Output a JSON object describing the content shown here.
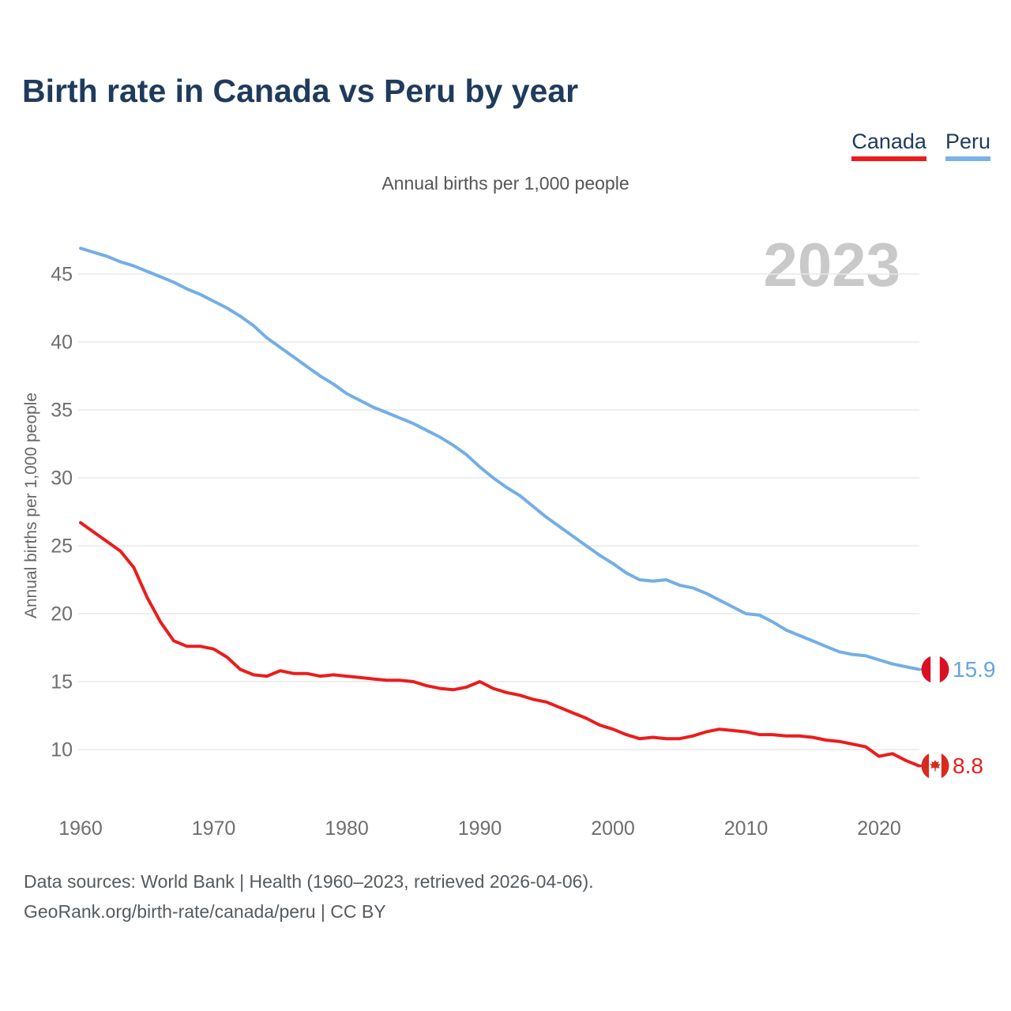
{
  "header": {
    "title": "Birth rate in Canada vs Peru by year",
    "subtitle": "Annual births per 1,000 people"
  },
  "legend": {
    "items": [
      {
        "label": "Canada",
        "color": "#ec1c1c"
      },
      {
        "label": "Peru",
        "color": "#7ab3e8"
      }
    ]
  },
  "footer": {
    "line1": "Data sources: World Bank | Health (1960–2023, retrieved 2026-04-06).",
    "line2": "GeoRank.org/birth-rate/canada/peru | CC BY"
  },
  "colors": {
    "canada_line": "#ec1c1c",
    "peru_line": "#73aee6",
    "peru_value_label": "#63a5e2",
    "canada_value_label": "#ec1c1c",
    "title_navy": "#1f3b5c",
    "tick_gray": "#6e6e6e",
    "grid_gray": "#e8e8e8",
    "watermark_gray": "#c9c9c9",
    "peru_flag_red": "#d91023",
    "canada_flag_red": "#d52b1e"
  },
  "chart_data": {
    "type": "line",
    "title": "Annual births per 1,000 people",
    "ylabel": "Annual births per 1,000 people",
    "xlabel": "",
    "watermark": "2023",
    "grid": true,
    "legend_position": "top-right",
    "xlim": [
      1960,
      2023
    ],
    "ylim": [
      8,
      48
    ],
    "xticks": [
      1960,
      1970,
      1980,
      1990,
      2000,
      2010,
      2020
    ],
    "yticks": [
      10,
      15,
      20,
      25,
      30,
      35,
      40,
      45
    ],
    "x": [
      1960,
      1961,
      1962,
      1963,
      1964,
      1965,
      1966,
      1967,
      1968,
      1969,
      1970,
      1971,
      1972,
      1973,
      1974,
      1975,
      1976,
      1977,
      1978,
      1979,
      1980,
      1981,
      1982,
      1983,
      1984,
      1985,
      1986,
      1987,
      1988,
      1989,
      1990,
      1991,
      1992,
      1993,
      1994,
      1995,
      1996,
      1997,
      1998,
      1999,
      2000,
      2001,
      2002,
      2003,
      2004,
      2005,
      2006,
      2007,
      2008,
      2009,
      2010,
      2011,
      2012,
      2013,
      2014,
      2015,
      2016,
      2017,
      2018,
      2019,
      2020,
      2021,
      2022,
      2023
    ],
    "series": [
      {
        "name": "Peru",
        "color": "#73aee6",
        "end_label": "15.9",
        "end_label_color": "#63a5e2",
        "flag": "peru",
        "values": [
          46.9,
          46.6,
          46.3,
          45.9,
          45.6,
          45.2,
          44.8,
          44.4,
          43.9,
          43.5,
          43.0,
          42.5,
          41.9,
          41.2,
          40.3,
          39.6,
          38.9,
          38.2,
          37.5,
          36.9,
          36.2,
          35.7,
          35.2,
          34.8,
          34.4,
          34.0,
          33.5,
          33.0,
          32.4,
          31.7,
          30.8,
          30.0,
          29.3,
          28.7,
          27.9,
          27.1,
          26.4,
          25.7,
          25.0,
          24.3,
          23.7,
          23.0,
          22.5,
          22.4,
          22.5,
          22.1,
          21.9,
          21.5,
          21.0,
          20.5,
          20.0,
          19.9,
          19.4,
          18.8,
          18.4,
          18.0,
          17.6,
          17.2,
          17.0,
          16.9,
          16.6,
          16.3,
          16.1,
          15.9
        ]
      },
      {
        "name": "Canada",
        "color": "#ec1c1c",
        "end_label": "8.8",
        "end_label_color": "#ec1c1c",
        "flag": "canada",
        "values": [
          26.7,
          26.0,
          25.3,
          24.6,
          23.4,
          21.2,
          19.4,
          18.0,
          17.6,
          17.6,
          17.4,
          16.8,
          15.9,
          15.5,
          15.4,
          15.8,
          15.6,
          15.6,
          15.4,
          15.5,
          15.4,
          15.3,
          15.2,
          15.1,
          15.1,
          15.0,
          14.7,
          14.5,
          14.4,
          14.6,
          15.0,
          14.5,
          14.2,
          14.0,
          13.7,
          13.5,
          13.1,
          12.7,
          12.3,
          11.8,
          11.5,
          11.1,
          10.8,
          10.9,
          10.8,
          10.8,
          11.0,
          11.3,
          11.5,
          11.4,
          11.3,
          11.1,
          11.1,
          11.0,
          11.0,
          10.9,
          10.7,
          10.6,
          10.4,
          10.2,
          9.5,
          9.7,
          9.2,
          8.8
        ]
      }
    ]
  }
}
